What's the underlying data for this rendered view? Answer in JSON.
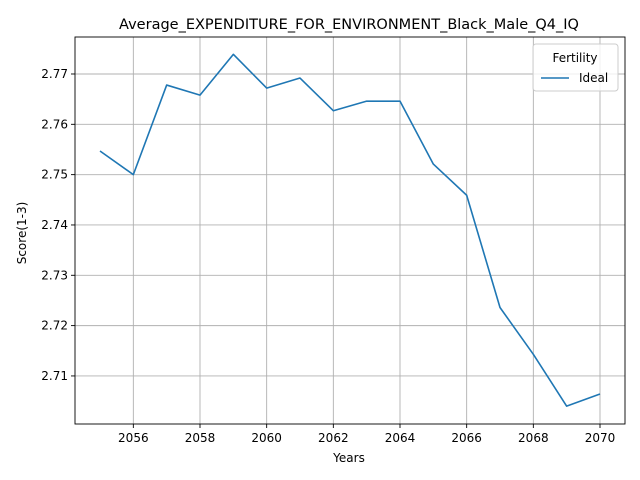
{
  "chart_data": {
    "type": "line",
    "title": "Average_EXPENDITURE_FOR_ENVIRONMENT_Black_Male_Q4_IQ",
    "xlabel": "Years",
    "ylabel": "Score(1-3)",
    "xlim": [
      2054.25,
      2070.75
    ],
    "ylim": [
      2.70045,
      2.77735
    ],
    "xticks": [
      2056,
      2058,
      2060,
      2062,
      2064,
      2066,
      2068,
      2070
    ],
    "yticks": [
      2.71,
      2.72,
      2.73,
      2.74,
      2.75,
      2.76,
      2.77
    ],
    "xtick_labels": [
      "2056",
      "2058",
      "2060",
      "2062",
      "2064",
      "2066",
      "2068",
      "2070"
    ],
    "ytick_labels": [
      "2.71",
      "2.72",
      "2.73",
      "2.74",
      "2.75",
      "2.76",
      "2.77"
    ],
    "grid": true,
    "legend": {
      "title": "Fertility",
      "position": "top-right"
    },
    "color": "#1f77b4",
    "series": [
      {
        "name": "Ideal",
        "x": [
          2055,
          2056,
          2057,
          2058,
          2059,
          2060,
          2061,
          2062,
          2063,
          2064,
          2065,
          2066,
          2067,
          2068,
          2069,
          2070
        ],
        "values": [
          2.7547,
          2.75,
          2.7678,
          2.7658,
          2.7739,
          2.7672,
          2.7692,
          2.7627,
          2.7646,
          2.7646,
          2.7521,
          2.7459,
          2.7236,
          2.7143,
          2.704,
          2.7064
        ]
      }
    ]
  }
}
